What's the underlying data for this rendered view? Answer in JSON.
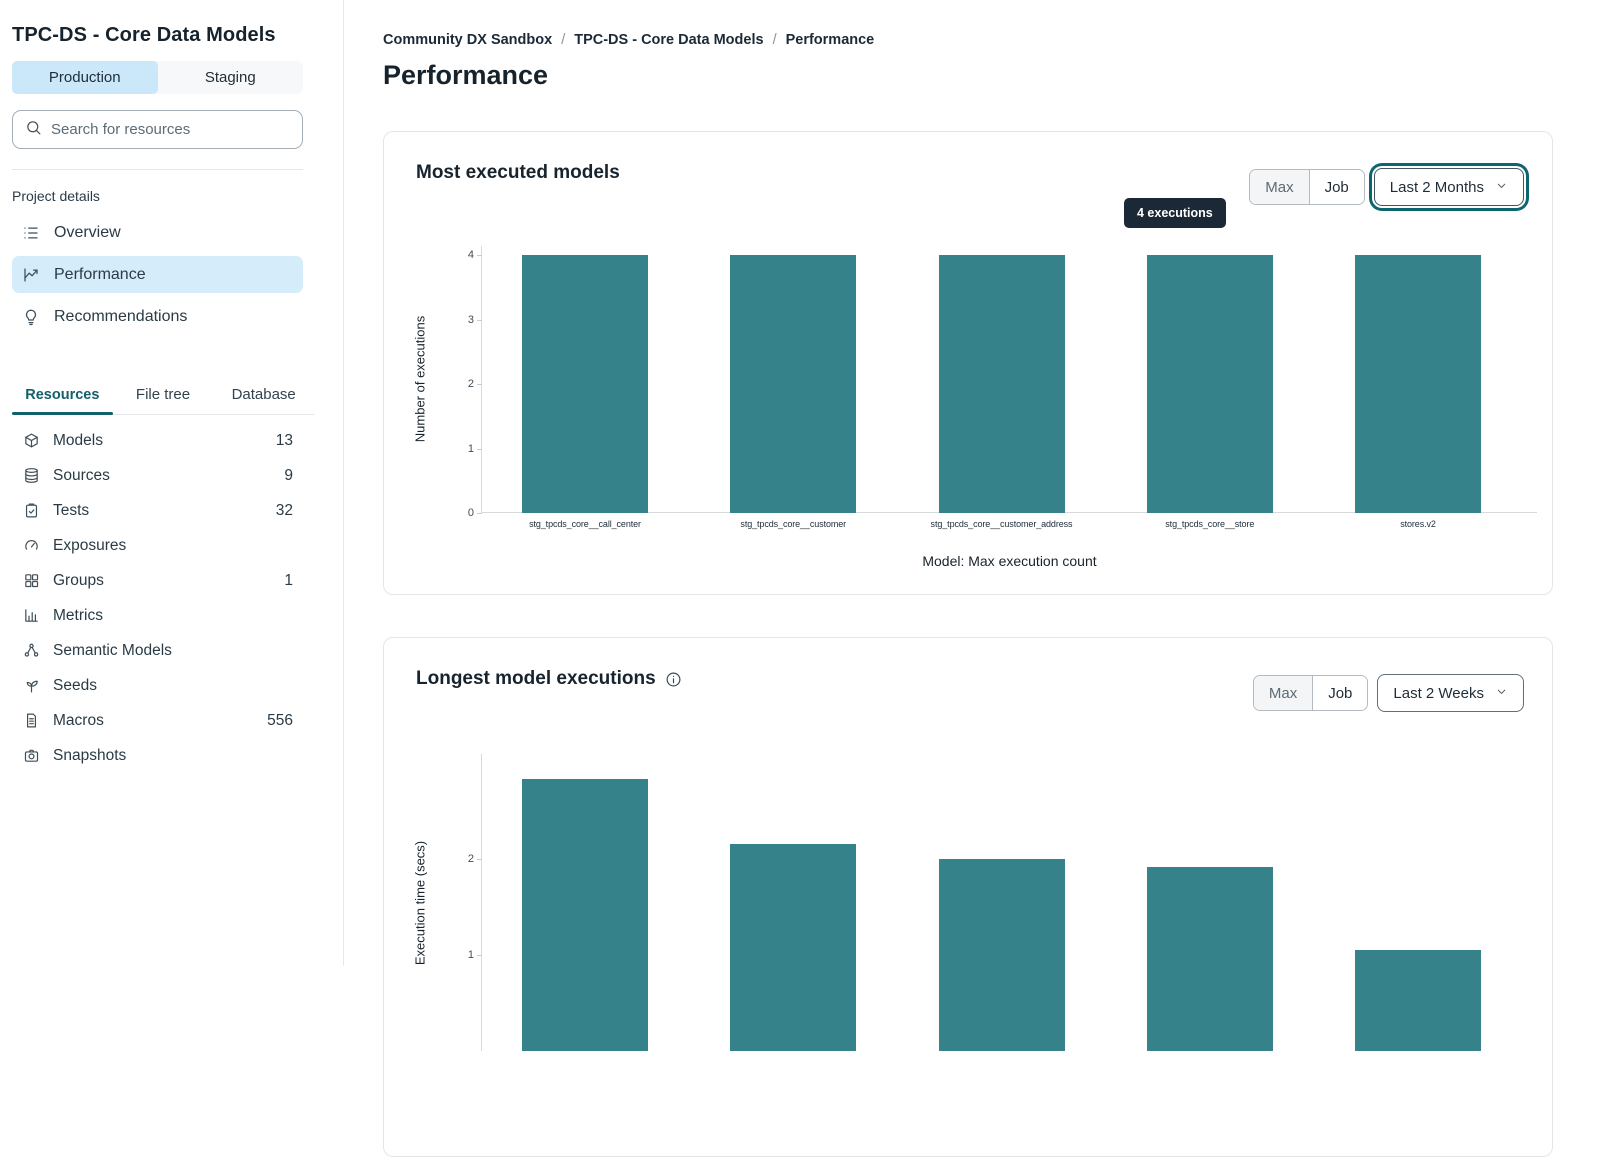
{
  "sidebar": {
    "project_title": "TPC-DS - Core Data Models",
    "environment_tabs": [
      {
        "label": "Production",
        "active": true
      },
      {
        "label": "Staging",
        "active": false
      }
    ],
    "search_placeholder": "Search for resources",
    "project_details_label": "Project details",
    "nav": [
      {
        "label": "Overview",
        "icon": "list-icon",
        "active": false
      },
      {
        "label": "Performance",
        "icon": "line-chart-icon",
        "active": true
      },
      {
        "label": "Recommendations",
        "icon": "lightbulb-icon",
        "active": false
      }
    ],
    "resource_tabs": [
      {
        "label": "Resources",
        "active": true
      },
      {
        "label": "File tree",
        "active": false
      },
      {
        "label": "Database",
        "active": false
      }
    ],
    "resources": [
      {
        "label": "Models",
        "count": "13",
        "icon": "cube-icon"
      },
      {
        "label": "Sources",
        "count": "9",
        "icon": "database-icon"
      },
      {
        "label": "Tests",
        "count": "32",
        "icon": "clipboard-check-icon"
      },
      {
        "label": "Exposures",
        "count": "",
        "icon": "gauge-icon"
      },
      {
        "label": "Groups",
        "count": "1",
        "icon": "grid-icon"
      },
      {
        "label": "Metrics",
        "count": "",
        "icon": "bar-chart-icon"
      },
      {
        "label": "Semantic Models",
        "count": "",
        "icon": "nodes-icon"
      },
      {
        "label": "Seeds",
        "count": "",
        "icon": "seedling-icon"
      },
      {
        "label": "Macros",
        "count": "556",
        "icon": "file-icon"
      },
      {
        "label": "Snapshots",
        "count": "",
        "icon": "camera-icon"
      }
    ]
  },
  "breadcrumb": {
    "items": [
      "Community DX Sandbox",
      "TPC-DS - Core Data Models",
      "Performance"
    ],
    "separator": "/"
  },
  "page_title": "Performance",
  "charts": {
    "most_executed": {
      "controls": {
        "max": "Max",
        "job": "Job",
        "active": "Job",
        "range": "Last 2 Months",
        "range_focused": true
      }
    },
    "longest": {
      "controls": {
        "max": "Max",
        "job": "Job",
        "active": "Job",
        "range": "Last 2 Weeks",
        "range_focused": false
      }
    }
  },
  "chart_data": [
    {
      "id": "chart-most-executed",
      "type": "bar",
      "title": "Most executed models",
      "categories": [
        "stg_tpcds_core__call_center",
        "stg_tpcds_core__customer",
        "stg_tpcds_core__customer_address",
        "stg_tpcds_core__store",
        "stores.v2"
      ],
      "values": [
        4,
        4,
        4,
        4,
        4
      ],
      "xlabel": "Model: Max execution count",
      "ylabel": "Number of executions",
      "ylim": [
        0,
        4.14
      ],
      "yticks": [
        0,
        1,
        2,
        3,
        4
      ],
      "grid": false,
      "bar_color": "#35828B",
      "tooltip": {
        "text": "4 executions",
        "bar_index": 3
      }
    },
    {
      "id": "chart-longest",
      "type": "bar",
      "title": "Longest model executions",
      "categories": [],
      "values": [
        2.83,
        2.16,
        2.0,
        1.92,
        1.05
      ],
      "xlabel": "",
      "ylabel": "Execution time (secs)",
      "ylim": [
        0,
        3.09
      ],
      "yticks": [
        1,
        2
      ],
      "grid": false,
      "bar_color": "#35828B"
    }
  ],
  "colors": {
    "accent_teal": "#13606b",
    "bar_teal": "#35828B",
    "active_blue_bg": "#cbe7fa",
    "tooltip_bg": "#1b2836",
    "text_dark": "#1c2b36"
  }
}
